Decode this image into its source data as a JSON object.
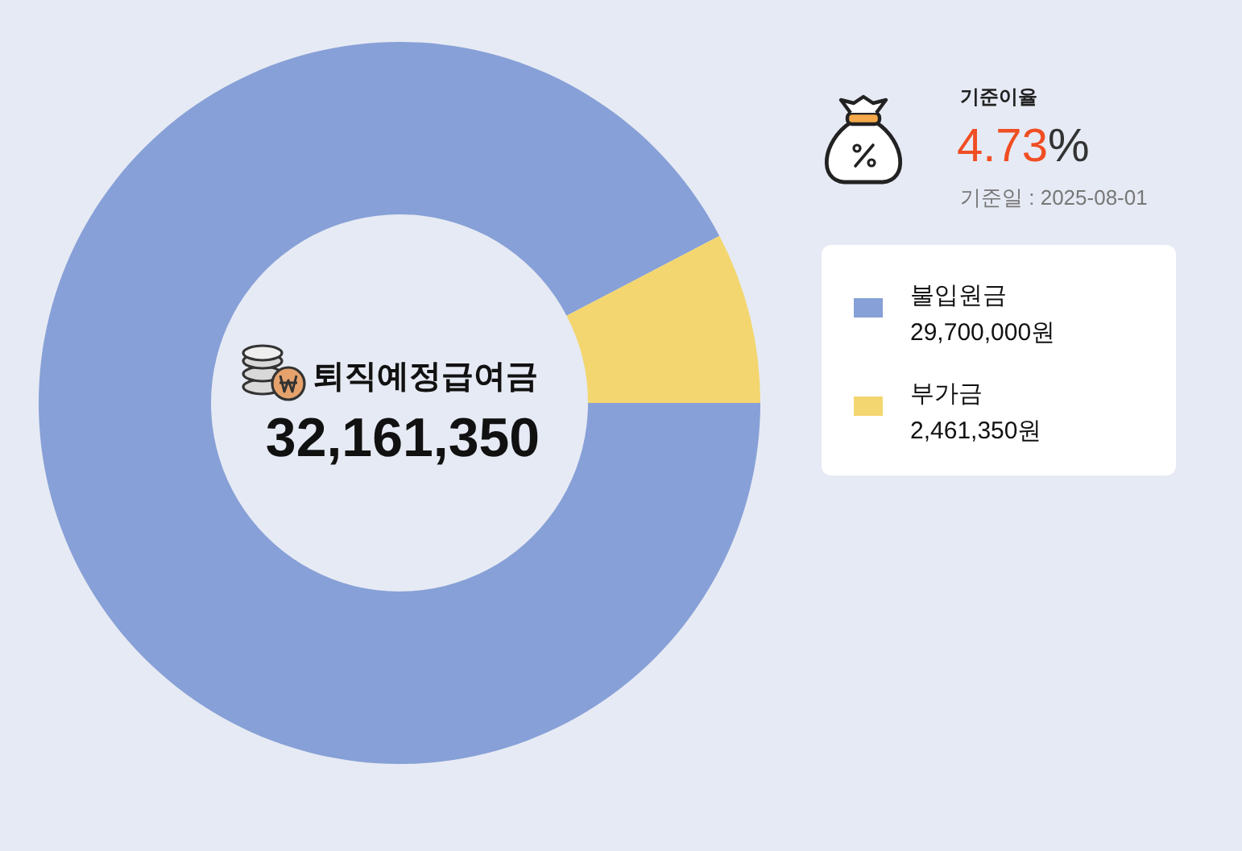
{
  "chart_data": {
    "type": "donut",
    "title": "퇴직예정급여금",
    "categories": [
      "불입원금",
      "부가금"
    ],
    "values": [
      29700000,
      2461350
    ],
    "colors": [
      "#87a0d7",
      "#f3d66f"
    ],
    "value_labels": [
      "29,700,000원",
      "2,461,350원"
    ],
    "legend": "right",
    "annotations": [
      "32,161,350",
      "기준이율",
      "4.73%",
      "기준일 : 2025-08-01"
    ]
  }
}
